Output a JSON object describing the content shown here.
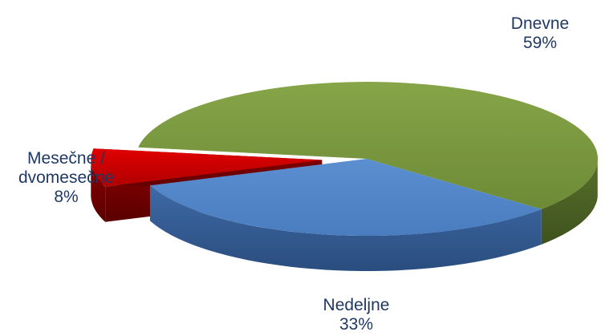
{
  "chart_data": {
    "type": "pie",
    "title": "",
    "three_d": true,
    "label_color": "#1f3864",
    "slices": [
      {
        "label": "Dnevne",
        "label_lines": [
          "Dnevne"
        ],
        "value": 59,
        "display": "59%",
        "color": "#77933c"
      },
      {
        "label": "Nedeljne",
        "label_lines": [
          "Nedeljne"
        ],
        "value": 33,
        "display": "33%",
        "color": "#4f81bd"
      },
      {
        "label": "Mesečne / dvomesečne",
        "label_lines": [
          "Mesečne /",
          "dvomesečne"
        ],
        "value": 8,
        "display": "8%",
        "color": "#c00000",
        "exploded": true
      }
    ]
  }
}
